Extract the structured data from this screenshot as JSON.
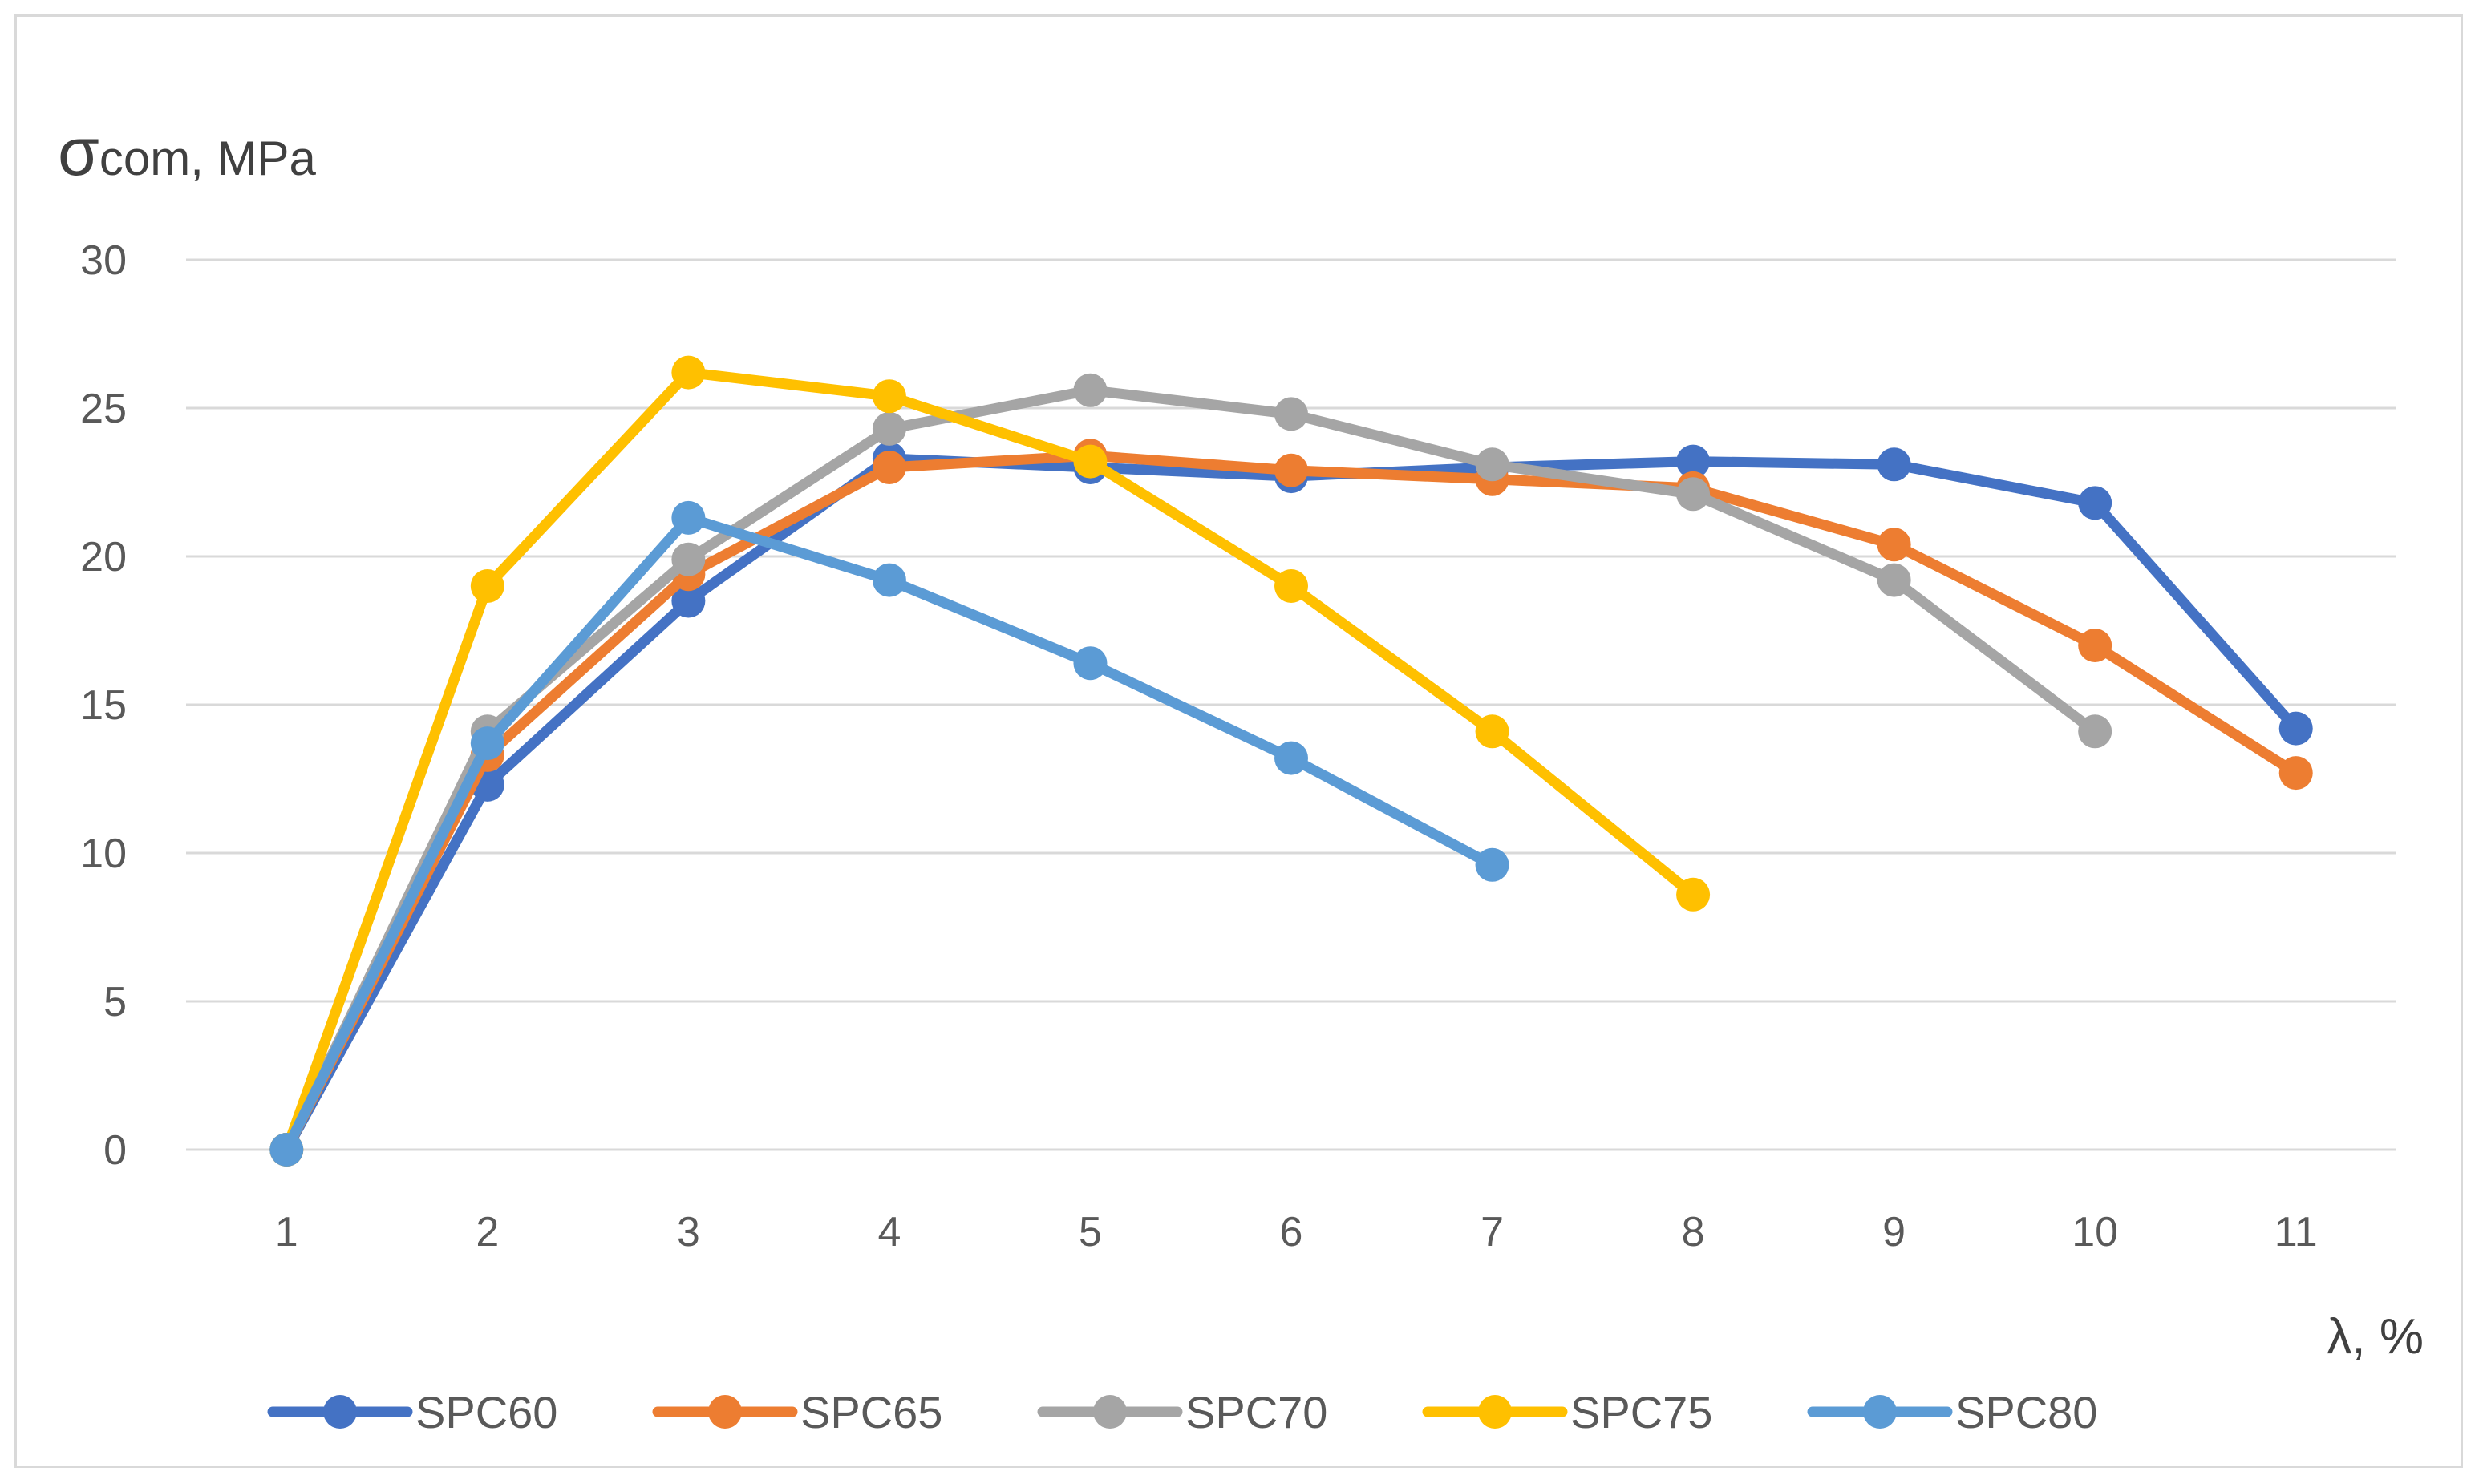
{
  "chart_data": {
    "type": "line",
    "title": "",
    "ylabel": {
      "symbol": "σ",
      "text": "com, MPa"
    },
    "xlabel": "λ, %",
    "x": [
      1,
      2,
      3,
      4,
      5,
      6,
      7,
      8,
      9,
      10,
      11
    ],
    "x_tick_labels": [
      "1",
      "2",
      "3",
      "4",
      "5",
      "6",
      "7",
      "8",
      "9",
      "10",
      "11"
    ],
    "ylim": [
      0,
      30
    ],
    "y_ticks": [
      0,
      5,
      10,
      15,
      20,
      25,
      30
    ],
    "y_tick_labels": [
      "0",
      "5",
      "10",
      "15",
      "20",
      "25",
      "30"
    ],
    "grid": "horizontal",
    "legend": "bottom",
    "series": [
      {
        "name": "SPC60",
        "color": "#4472C4",
        "x": [
          1,
          2,
          3,
          4,
          5,
          6,
          7,
          8,
          9,
          10,
          11
        ],
        "values": [
          0,
          12.3,
          18.5,
          23.3,
          23.0,
          22.7,
          23.0,
          23.2,
          23.1,
          21.8,
          14.2
        ]
      },
      {
        "name": "SPC65",
        "color": "#ED7D31",
        "x": [
          1,
          2,
          3,
          4,
          5,
          6,
          7,
          8,
          9,
          10,
          11
        ],
        "values": [
          0,
          13.3,
          19.4,
          23.0,
          23.4,
          22.9,
          22.6,
          22.3,
          20.4,
          17.0,
          12.7
        ]
      },
      {
        "name": "SPC70",
        "color": "#A5A5A5",
        "x": [
          1,
          2,
          3,
          4,
          5,
          6,
          7,
          8,
          9,
          10
        ],
        "values": [
          0,
          14.1,
          19.9,
          24.3,
          25.6,
          24.8,
          23.1,
          22.1,
          19.2,
          14.1
        ]
      },
      {
        "name": "SPC75",
        "color": "#FFC000",
        "x": [
          1,
          2,
          3,
          4,
          5,
          6,
          7,
          8
        ],
        "values": [
          0,
          19.0,
          26.2,
          25.4,
          23.2,
          19.0,
          14.1,
          8.6
        ]
      },
      {
        "name": "SPC80",
        "color": "#5B9BD5",
        "x": [
          1,
          2,
          3,
          4,
          5,
          6,
          7
        ],
        "values": [
          0,
          13.7,
          21.3,
          19.2,
          16.4,
          13.2,
          9.6
        ]
      }
    ]
  }
}
